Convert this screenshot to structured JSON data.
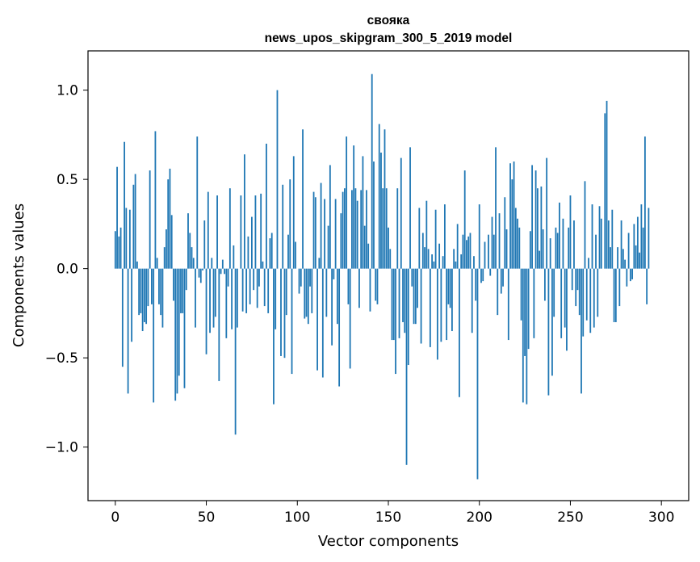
{
  "chart_data": {
    "type": "bar",
    "title": "своякаnews_upos_skipgram_300_5_2019 model",
    "title_line1": "своякa",
    "title_line2": "news_upos_skipgram_300_5_2019 model",
    "xlabel": "Vector components",
    "ylabel": "Components values",
    "xlim": [
      -15,
      315
    ],
    "ylim": [
      -1.3,
      1.22
    ],
    "x_ticks": [
      0,
      50,
      100,
      150,
      200,
      250,
      300
    ],
    "x_tick_labels": [
      "0",
      "50",
      "100",
      "150",
      "200",
      "250",
      "300"
    ],
    "y_ticks": [
      -1.0,
      -0.5,
      0.0,
      0.5,
      1.0
    ],
    "y_tick_labels": [
      "−1.0",
      "−0.5",
      "0.0",
      "0.5",
      "1.0"
    ],
    "bar_color": "#1f77b4",
    "values": [
      0.21,
      0.57,
      0.18,
      0.23,
      -0.55,
      0.71,
      0.34,
      -0.7,
      0.33,
      -0.41,
      0.47,
      0.53,
      0.04,
      -0.26,
      -0.25,
      -0.35,
      -0.3,
      -0.31,
      -0.21,
      0.55,
      -0.2,
      -0.75,
      0.77,
      0.06,
      -0.2,
      -0.26,
      -0.33,
      0.12,
      0.22,
      0.5,
      0.56,
      0.3,
      -0.18,
      -0.74,
      -0.7,
      -0.6,
      -0.25,
      -0.25,
      -0.67,
      -0.12,
      0.31,
      0.2,
      0.12,
      0.06,
      -0.33,
      0.74,
      -0.05,
      -0.08,
      -0.01,
      0.27,
      -0.48,
      0.43,
      -0.36,
      0.06,
      -0.33,
      -0.27,
      0.41,
      -0.63,
      -0.03,
      0.05,
      -0.03,
      -0.39,
      -0.1,
      0.45,
      -0.34,
      0.13,
      -0.93,
      -0.33,
      0.0,
      0.41,
      -0.24,
      0.64,
      -0.25,
      0.18,
      -0.2,
      0.29,
      -0.12,
      0.41,
      -0.22,
      -0.1,
      0.42,
      0.04,
      -0.21,
      0.7,
      -0.25,
      0.17,
      0.2,
      -0.76,
      -0.34,
      1.0,
      0.0,
      -0.49,
      0.47,
      -0.5,
      -0.26,
      0.19,
      0.5,
      -0.59,
      0.63,
      0.15,
      0.0,
      -0.14,
      -0.1,
      0.78,
      -0.28,
      -0.27,
      -0.31,
      -0.1,
      -0.25,
      0.43,
      0.4,
      -0.57,
      0.06,
      0.48,
      -0.61,
      0.39,
      -0.27,
      0.24,
      0.58,
      -0.43,
      -0.06,
      0.39,
      -0.31,
      -0.66,
      0.31,
      0.43,
      0.45,
      0.74,
      -0.2,
      -0.56,
      0.44,
      0.69,
      0.45,
      0.38,
      -0.22,
      0.44,
      0.63,
      0.24,
      0.44,
      0.14,
      -0.24,
      1.09,
      0.6,
      -0.18,
      -0.2,
      0.81,
      0.65,
      0.45,
      0.78,
      0.45,
      0.23,
      0.11,
      -0.4,
      -0.4,
      -0.59,
      0.45,
      -0.39,
      0.62,
      -0.3,
      -0.36,
      -1.1,
      -0.54,
      0.68,
      -0.1,
      -0.31,
      -0.31,
      -0.22,
      0.34,
      -0.42,
      0.2,
      0.12,
      0.38,
      0.11,
      -0.44,
      0.08,
      0.04,
      0.33,
      -0.51,
      0.14,
      -0.41,
      0.07,
      0.36,
      -0.4,
      -0.2,
      -0.22,
      -0.35,
      0.11,
      0.04,
      0.25,
      -0.72,
      0.08,
      0.19,
      0.55,
      0.16,
      0.18,
      0.2,
      -0.36,
      0.07,
      -0.18,
      -1.18,
      0.36,
      -0.08,
      -0.07,
      0.15,
      0.0,
      0.19,
      -0.04,
      0.29,
      0.19,
      0.68,
      -0.26,
      0.31,
      -0.14,
      -0.1,
      0.4,
      0.22,
      -0.4,
      0.59,
      0.5,
      0.6,
      0.34,
      0.28,
      0.23,
      -0.29,
      -0.75,
      -0.49,
      -0.76,
      -0.45,
      0.21,
      0.58,
      -0.39,
      0.55,
      0.45,
      0.1,
      0.46,
      0.22,
      -0.18,
      0.62,
      -0.71,
      0.17,
      -0.6,
      -0.27,
      0.23,
      0.2,
      0.37,
      -0.39,
      0.28,
      -0.33,
      -0.46,
      0.23,
      0.41,
      -0.12,
      0.27,
      -0.21,
      -0.12,
      -0.26,
      -0.7,
      -0.38,
      0.49,
      -0.29,
      0.06,
      -0.36,
      0.36,
      -0.33,
      0.19,
      -0.27,
      0.35,
      0.28,
      0.0,
      0.87,
      0.94,
      0.27,
      0.12,
      0.33,
      -0.3,
      -0.3,
      0.12,
      -0.21,
      0.27,
      0.11,
      0.05,
      -0.1,
      0.2,
      -0.07,
      -0.06,
      0.25,
      0.13,
      0.29,
      0.09,
      0.36,
      0.23,
      0.74,
      -0.2,
      0.34
    ]
  }
}
